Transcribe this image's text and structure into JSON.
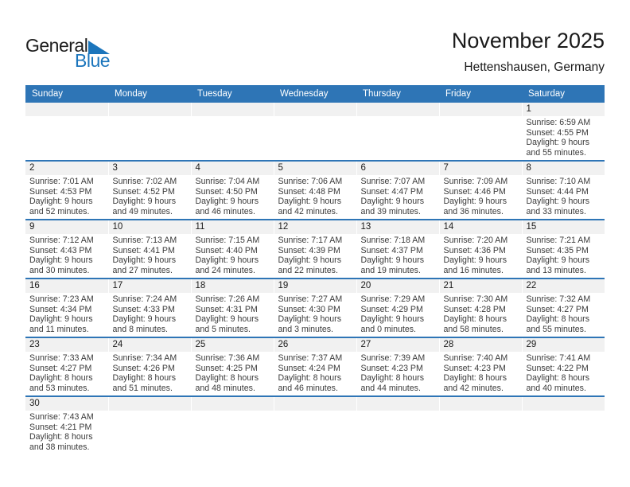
{
  "logo": {
    "part1": "General",
    "part2": "Blue"
  },
  "header": {
    "title": "November 2025",
    "subtitle": "Hettenshausen, Germany"
  },
  "weekdays": [
    "Sunday",
    "Monday",
    "Tuesday",
    "Wednesday",
    "Thursday",
    "Friday",
    "Saturday"
  ],
  "labels": {
    "sunrise": "Sunrise:",
    "sunset": "Sunset:",
    "daylight": "Daylight:",
    "hours": "hours",
    "and": "and",
    "minutes": "minutes."
  },
  "colors": {
    "header_blue": "#2e75b6",
    "band_gray": "#f1f1f1",
    "logo_blue": "#1b75bc",
    "detail_text": "#3a3a3a"
  },
  "weeks": [
    [
      null,
      null,
      null,
      null,
      null,
      null,
      {
        "day": "1",
        "sunrise": "6:59 AM",
        "sunset": "4:55 PM",
        "daylight_hours": "9",
        "daylight_minutes": "55"
      }
    ],
    [
      {
        "day": "2",
        "sunrise": "7:01 AM",
        "sunset": "4:53 PM",
        "daylight_hours": "9",
        "daylight_minutes": "52"
      },
      {
        "day": "3",
        "sunrise": "7:02 AM",
        "sunset": "4:52 PM",
        "daylight_hours": "9",
        "daylight_minutes": "49"
      },
      {
        "day": "4",
        "sunrise": "7:04 AM",
        "sunset": "4:50 PM",
        "daylight_hours": "9",
        "daylight_minutes": "46"
      },
      {
        "day": "5",
        "sunrise": "7:06 AM",
        "sunset": "4:48 PM",
        "daylight_hours": "9",
        "daylight_minutes": "42"
      },
      {
        "day": "6",
        "sunrise": "7:07 AM",
        "sunset": "4:47 PM",
        "daylight_hours": "9",
        "daylight_minutes": "39"
      },
      {
        "day": "7",
        "sunrise": "7:09 AM",
        "sunset": "4:46 PM",
        "daylight_hours": "9",
        "daylight_minutes": "36"
      },
      {
        "day": "8",
        "sunrise": "7:10 AM",
        "sunset": "4:44 PM",
        "daylight_hours": "9",
        "daylight_minutes": "33"
      }
    ],
    [
      {
        "day": "9",
        "sunrise": "7:12 AM",
        "sunset": "4:43 PM",
        "daylight_hours": "9",
        "daylight_minutes": "30"
      },
      {
        "day": "10",
        "sunrise": "7:13 AM",
        "sunset": "4:41 PM",
        "daylight_hours": "9",
        "daylight_minutes": "27"
      },
      {
        "day": "11",
        "sunrise": "7:15 AM",
        "sunset": "4:40 PM",
        "daylight_hours": "9",
        "daylight_minutes": "24"
      },
      {
        "day": "12",
        "sunrise": "7:17 AM",
        "sunset": "4:39 PM",
        "daylight_hours": "9",
        "daylight_minutes": "22"
      },
      {
        "day": "13",
        "sunrise": "7:18 AM",
        "sunset": "4:37 PM",
        "daylight_hours": "9",
        "daylight_minutes": "19"
      },
      {
        "day": "14",
        "sunrise": "7:20 AM",
        "sunset": "4:36 PM",
        "daylight_hours": "9",
        "daylight_minutes": "16"
      },
      {
        "day": "15",
        "sunrise": "7:21 AM",
        "sunset": "4:35 PM",
        "daylight_hours": "9",
        "daylight_minutes": "13"
      }
    ],
    [
      {
        "day": "16",
        "sunrise": "7:23 AM",
        "sunset": "4:34 PM",
        "daylight_hours": "9",
        "daylight_minutes": "11"
      },
      {
        "day": "17",
        "sunrise": "7:24 AM",
        "sunset": "4:33 PM",
        "daylight_hours": "9",
        "daylight_minutes": "8"
      },
      {
        "day": "18",
        "sunrise": "7:26 AM",
        "sunset": "4:31 PM",
        "daylight_hours": "9",
        "daylight_minutes": "5"
      },
      {
        "day": "19",
        "sunrise": "7:27 AM",
        "sunset": "4:30 PM",
        "daylight_hours": "9",
        "daylight_minutes": "3"
      },
      {
        "day": "20",
        "sunrise": "7:29 AM",
        "sunset": "4:29 PM",
        "daylight_hours": "9",
        "daylight_minutes": "0"
      },
      {
        "day": "21",
        "sunrise": "7:30 AM",
        "sunset": "4:28 PM",
        "daylight_hours": "8",
        "daylight_minutes": "58"
      },
      {
        "day": "22",
        "sunrise": "7:32 AM",
        "sunset": "4:27 PM",
        "daylight_hours": "8",
        "daylight_minutes": "55"
      }
    ],
    [
      {
        "day": "23",
        "sunrise": "7:33 AM",
        "sunset": "4:27 PM",
        "daylight_hours": "8",
        "daylight_minutes": "53"
      },
      {
        "day": "24",
        "sunrise": "7:34 AM",
        "sunset": "4:26 PM",
        "daylight_hours": "8",
        "daylight_minutes": "51"
      },
      {
        "day": "25",
        "sunrise": "7:36 AM",
        "sunset": "4:25 PM",
        "daylight_hours": "8",
        "daylight_minutes": "48"
      },
      {
        "day": "26",
        "sunrise": "7:37 AM",
        "sunset": "4:24 PM",
        "daylight_hours": "8",
        "daylight_minutes": "46"
      },
      {
        "day": "27",
        "sunrise": "7:39 AM",
        "sunset": "4:23 PM",
        "daylight_hours": "8",
        "daylight_minutes": "44"
      },
      {
        "day": "28",
        "sunrise": "7:40 AM",
        "sunset": "4:23 PM",
        "daylight_hours": "8",
        "daylight_minutes": "42"
      },
      {
        "day": "29",
        "sunrise": "7:41 AM",
        "sunset": "4:22 PM",
        "daylight_hours": "8",
        "daylight_minutes": "40"
      }
    ],
    [
      {
        "day": "30",
        "sunrise": "7:43 AM",
        "sunset": "4:21 PM",
        "daylight_hours": "8",
        "daylight_minutes": "38"
      },
      null,
      null,
      null,
      null,
      null,
      null
    ]
  ]
}
